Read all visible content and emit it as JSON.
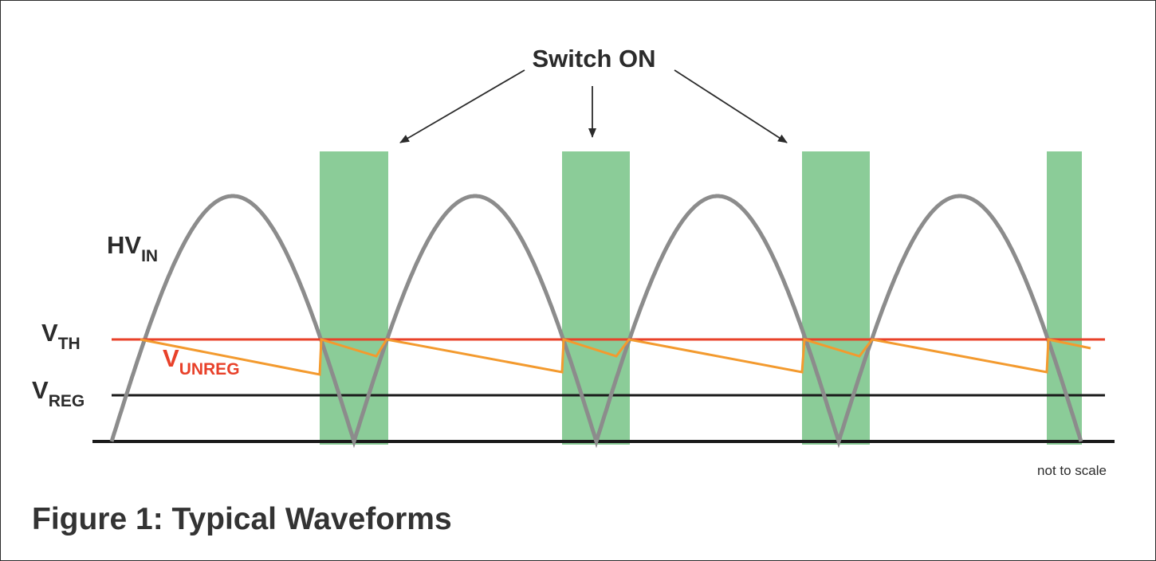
{
  "figure": {
    "caption": "Figure 1: Typical Waveforms",
    "annotation": "Switch ON",
    "scale_note": "not to scale"
  },
  "labels": {
    "hv_in": {
      "base": "HV",
      "sub": "IN"
    },
    "v_th": {
      "base": "V",
      "sub": "TH"
    },
    "v_unreg": {
      "base": "V",
      "sub": "UNREG"
    },
    "v_reg": {
      "base": "V",
      "sub": "REG"
    }
  },
  "colors": {
    "hv_in": "#8c8c8c",
    "v_th": "#e8412a",
    "v_unreg": "#f39a2e",
    "v_unreg_label": "#e8412a",
    "v_reg": "#1a1a1a",
    "switch_on": "#8bcc98",
    "text": "#2b2b2b"
  },
  "switch_on_windows": 4,
  "half_cycles": 4
}
